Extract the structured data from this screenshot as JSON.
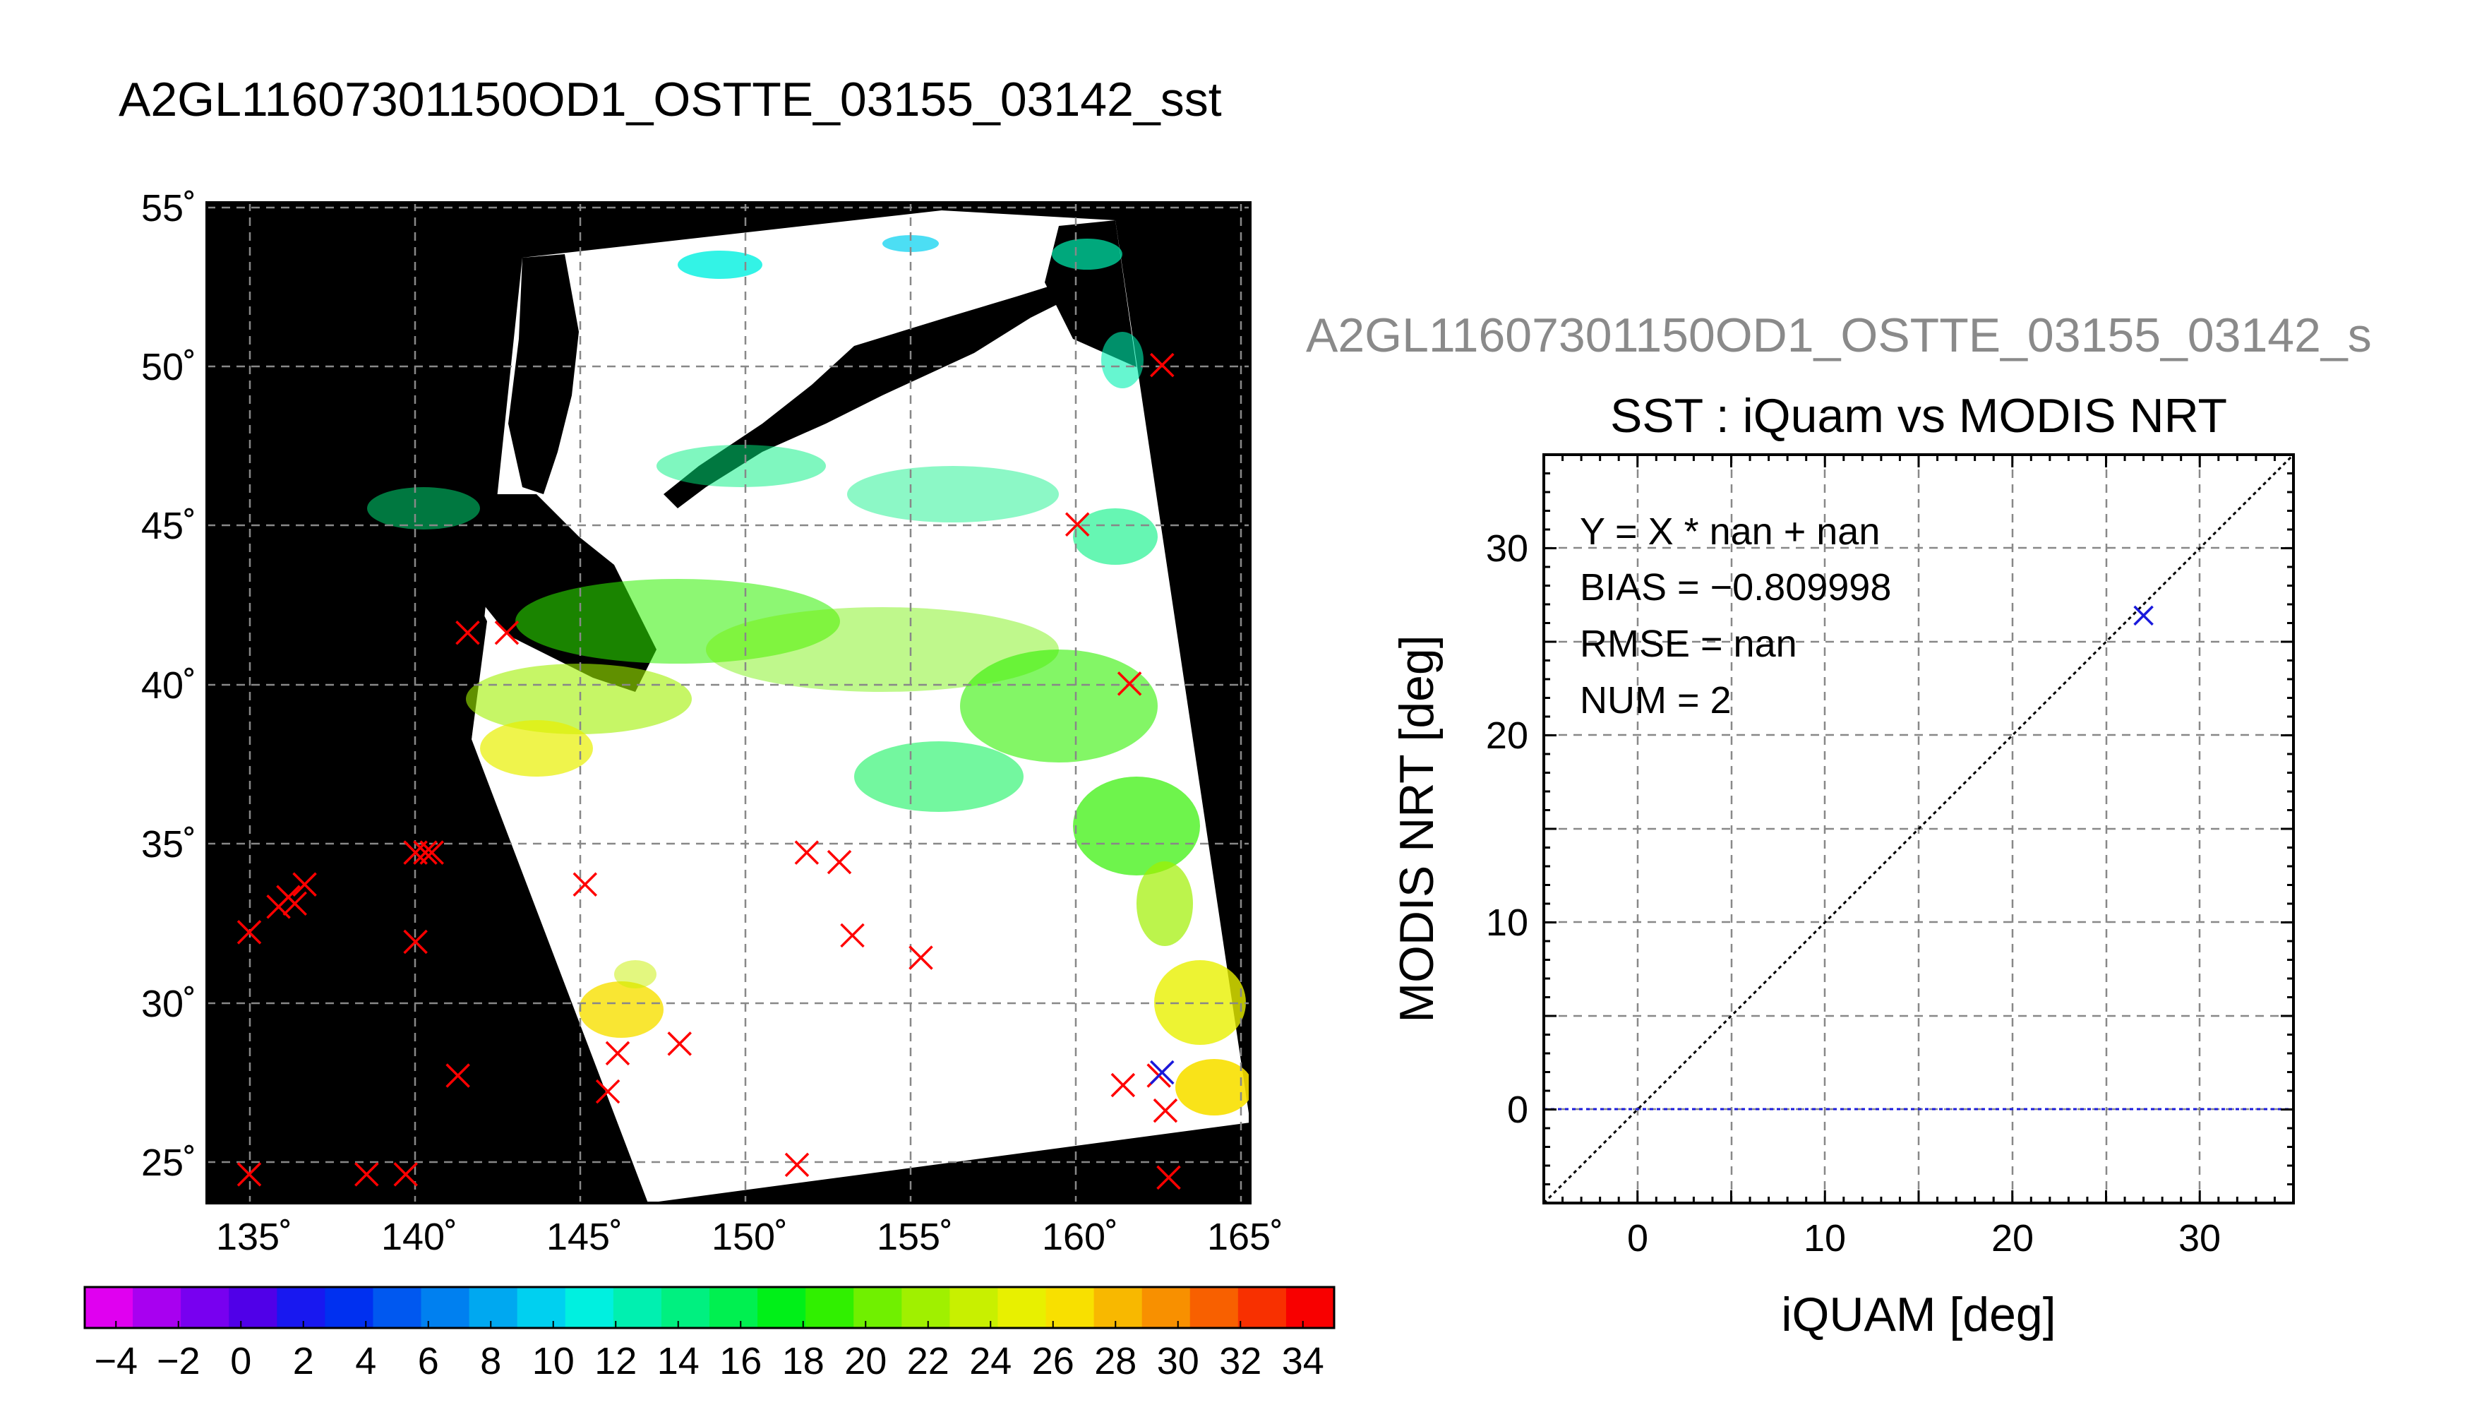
{
  "map_panel": {
    "title": "A2GL11607301150OD1_OSTTE_03155_03142_sst",
    "lon_ticks": [
      "135˚",
      "140˚",
      "145˚",
      "150˚",
      "155˚",
      "160˚",
      "165˚"
    ],
    "lat_ticks": [
      "55˚",
      "50˚",
      "45˚",
      "40˚",
      "35˚",
      "30˚",
      "25˚"
    ]
  },
  "colorbar": {
    "tick_labels": [
      "−4",
      "−2",
      "0",
      "2",
      "4",
      "6",
      "8",
      "10",
      "12",
      "14",
      "16",
      "18",
      "20",
      "22",
      "24",
      "26",
      "28",
      "30",
      "32",
      "34"
    ],
    "range": [
      -5,
      35
    ],
    "colors": [
      "#e000f0",
      "#a800f0",
      "#7800f0",
      "#5000e8",
      "#1818f0",
      "#0030f0",
      "#0058f0",
      "#0080f0",
      "#00a8f0",
      "#00d0f0",
      "#00f0e0",
      "#00f0b0",
      "#00f080",
      "#00f050",
      "#00f018",
      "#30f000",
      "#70f000",
      "#a0f000",
      "#c8f000",
      "#e8f000",
      "#f8e000",
      "#f8b800",
      "#f89000",
      "#f86000",
      "#f83000",
      "#f80000"
    ]
  },
  "scatter_panel": {
    "source_title": "A2GL11607301150OD1_OSTTE_03155_03142_s",
    "title": "SST : iQuam vs MODIS NRT",
    "stats": [
      "Y = X * nan + nan",
      "BIAS = −0.809998",
      "RMSE = nan",
      "NUM = 2"
    ],
    "x_ticks": [
      "0",
      "10",
      "20",
      "30"
    ],
    "y_ticks": [
      "0",
      "10",
      "20",
      "30"
    ],
    "xlabel": "iQUAM [deg]",
    "ylabel": "MODIS NRT [deg]",
    "colors": {
      "point": "#1a1adc",
      "identity": "#000000",
      "zero_line": "#1a1adc"
    }
  },
  "chart_data": [
    {
      "type": "scatter",
      "title": "A2GL11607301150OD1_OSTTE_03155_03142_sst",
      "xlim": [
        133.5,
        165.5
      ],
      "ylim": [
        23.7,
        55.1
      ],
      "grid": true,
      "series": [
        {
          "marker": "x",
          "color": "#ff0000",
          "points": [
            [
              134.8,
              24.6
            ],
            [
              134.8,
              32.2
            ],
            [
              135.7,
              33.0
            ],
            [
              136.0,
              33.3
            ],
            [
              136.2,
              33.1
            ],
            [
              136.5,
              33.7
            ],
            [
              138.4,
              24.6
            ],
            [
              139.6,
              24.6
            ],
            [
              139.9,
              31.9
            ],
            [
              139.9,
              34.7
            ],
            [
              140.2,
              34.7
            ],
            [
              140.4,
              34.7
            ],
            [
              141.2,
              27.7
            ],
            [
              141.5,
              41.6
            ],
            [
              142.7,
              41.6
            ],
            [
              145.1,
              33.7
            ],
            [
              145.8,
              27.2
            ],
            [
              146.1,
              28.4
            ],
            [
              148.0,
              28.7
            ],
            [
              151.6,
              24.9
            ],
            [
              151.9,
              34.7
            ],
            [
              152.9,
              34.4
            ],
            [
              153.3,
              32.1
            ],
            [
              155.4,
              31.4
            ],
            [
              160.2,
              45.0
            ],
            [
              161.6,
              27.4
            ],
            [
              161.8,
              40.0
            ],
            [
              162.7,
              27.7
            ],
            [
              162.8,
              50.0
            ],
            [
              162.9,
              26.6
            ],
            [
              163.0,
              24.5
            ]
          ]
        },
        {
          "marker": "x",
          "color": "#1a1adc",
          "points": [
            [
              162.8,
              27.8
            ]
          ]
        }
      ]
    },
    {
      "type": "scatter",
      "title": "SST : iQuam vs MODIS NRT",
      "xlabel": "iQUAM [deg]",
      "ylabel": "MODIS NRT [deg]",
      "xlim": [
        -5,
        35
      ],
      "ylim": [
        -5,
        35
      ],
      "grid": true,
      "series": [
        {
          "marker": "x",
          "color": "#1a1adc",
          "points": [
            [
              27.0,
              26.4
            ]
          ]
        }
      ]
    }
  ]
}
